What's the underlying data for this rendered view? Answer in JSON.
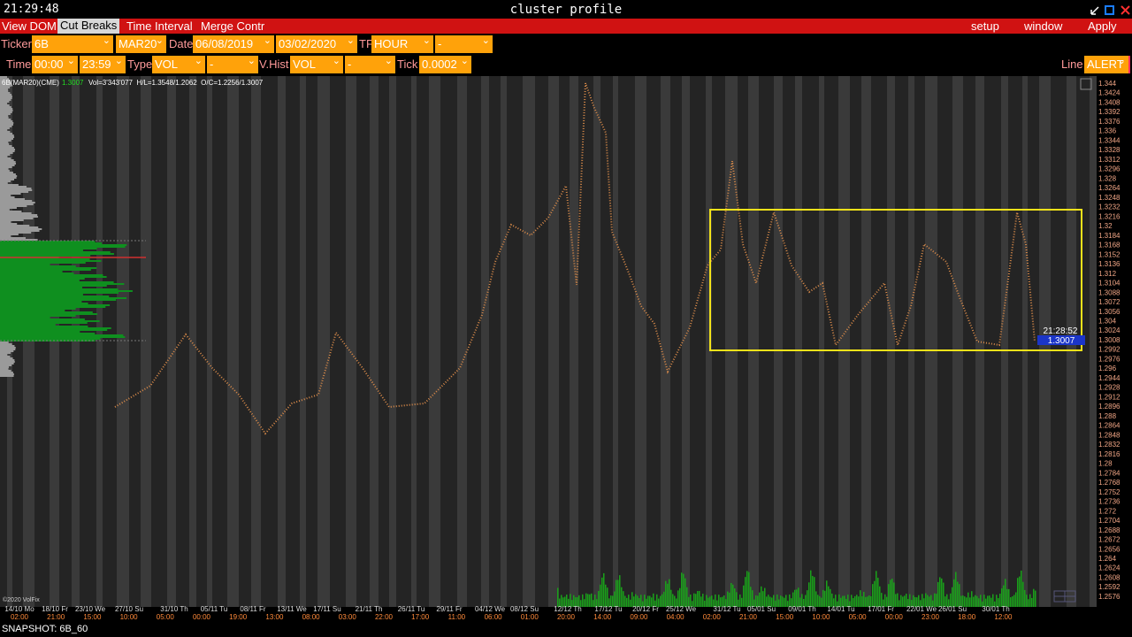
{
  "title_bar": {
    "clock": "21:29:48",
    "title": "cluster profile"
  },
  "menu": {
    "left": [
      "View DOM",
      "Cut Breaks",
      "Time Interval",
      "Merge Contr"
    ],
    "right": [
      "setup",
      "window",
      "Apply"
    ]
  },
  "toolbar": {
    "row1_labels": [
      "Ticker",
      "Date",
      "TF"
    ],
    "row1_fields": [
      "6B",
      "MAR20",
      "06/08/2019",
      "03/02/2020",
      "HOUR",
      "-"
    ],
    "row2_labels": [
      "Time",
      "Type",
      "V.Hist",
      "Tick",
      "Line"
    ],
    "row2_fields": [
      "00:00",
      "23:59",
      "VOL",
      "-",
      "VOL",
      "-",
      "0.0002",
      "ALERT"
    ]
  },
  "info": {
    "symbol": "6B(MAR20)(CME)",
    "last": "1.3007",
    "stats": "Vol=3'343'077  H/L=1.3548/1.2062  O/C=1.2256/1.3007"
  },
  "price_axis": [
    "1.344",
    "1.3424",
    "1.3408",
    "1.3392",
    "1.3376",
    "1.336",
    "1.3344",
    "1.3328",
    "1.3312",
    "1.3296",
    "1.328",
    "1.3264",
    "1.3248",
    "1.3232",
    "1.3216",
    "1.32",
    "1.3184",
    "1.3168",
    "1.3152",
    "1.3136",
    "1.312",
    "1.3104",
    "1.3088",
    "1.3072",
    "1.3056",
    "1.304",
    "1.3024",
    "1.3008",
    "1.2992",
    "1.2976",
    "1.296",
    "1.2944",
    "1.2928",
    "1.2912",
    "1.2896",
    "1.288",
    "1.2864",
    "1.2848",
    "1.2832",
    "1.2816",
    "1.28",
    "1.2784",
    "1.2768",
    "1.2752",
    "1.2736",
    "1.272",
    "1.2704",
    "1.2688",
    "1.2672",
    "1.2656",
    "1.264",
    "1.2624",
    "1.2608",
    "1.2592",
    "1.2576"
  ],
  "time_axis": {
    "dates": [
      "14/10 Mo",
      "18/10 Fr",
      "23/10 We",
      "27/10 Su",
      "31/10 Th",
      "05/11 Tu",
      "08/11 Fr",
      "13/11 We",
      "17/11 Su",
      "21/11 Th",
      "26/11 Tu",
      "29/11 Fr",
      "04/12 We",
      "08/12 Su",
      "12/12 Th",
      "17/12 Tu",
      "20/12 Fr",
      "25/12 We",
      "31/12 Tu",
      "05/01 Su",
      "09/01 Th",
      "14/01 Tu",
      "17/01 Fr",
      "22/01 We",
      "26/01 Su",
      "30/01 Th"
    ],
    "times": [
      "02:00",
      "21:00",
      "15:00",
      "10:00",
      "05:00",
      "00:00",
      "19:00",
      "13:00",
      "08:00",
      "03:00",
      "22:00",
      "17:00",
      "11:00",
      "06:00",
      "01:00",
      "20:00",
      "14:00",
      "09:00",
      "04:00",
      "02:00",
      "21:00",
      "15:00",
      "10:00",
      "05:00",
      "00:00",
      "23:00",
      "18:00",
      "12:00"
    ]
  },
  "price_marker": {
    "time": "21:28:52",
    "price": "1.3007"
  },
  "copyright": "©2020 VolFix",
  "status": "SNAPSHOT: 6B_60"
}
